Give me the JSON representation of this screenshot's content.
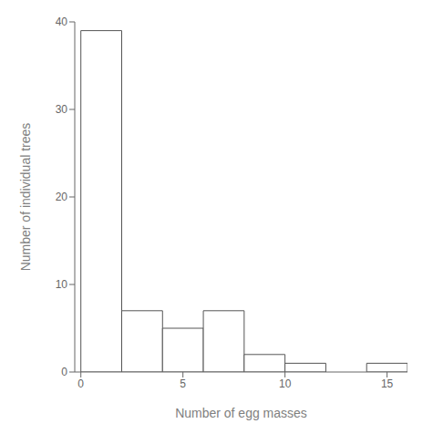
{
  "chart_data": {
    "type": "histogram",
    "bins": [
      0,
      2,
      4,
      6,
      8,
      10,
      12,
      14,
      16
    ],
    "values": [
      39,
      7,
      5,
      7,
      2,
      1,
      0,
      1
    ],
    "xlabel": "Number of egg masses",
    "ylabel": "Number of individual trees",
    "xlim": [
      -0.3,
      16
    ],
    "ylim": [
      0,
      40
    ],
    "xticks": [
      0,
      5,
      10,
      15
    ],
    "yticks": [
      0,
      10,
      20,
      30,
      40
    ],
    "color": "white",
    "grid": false
  }
}
